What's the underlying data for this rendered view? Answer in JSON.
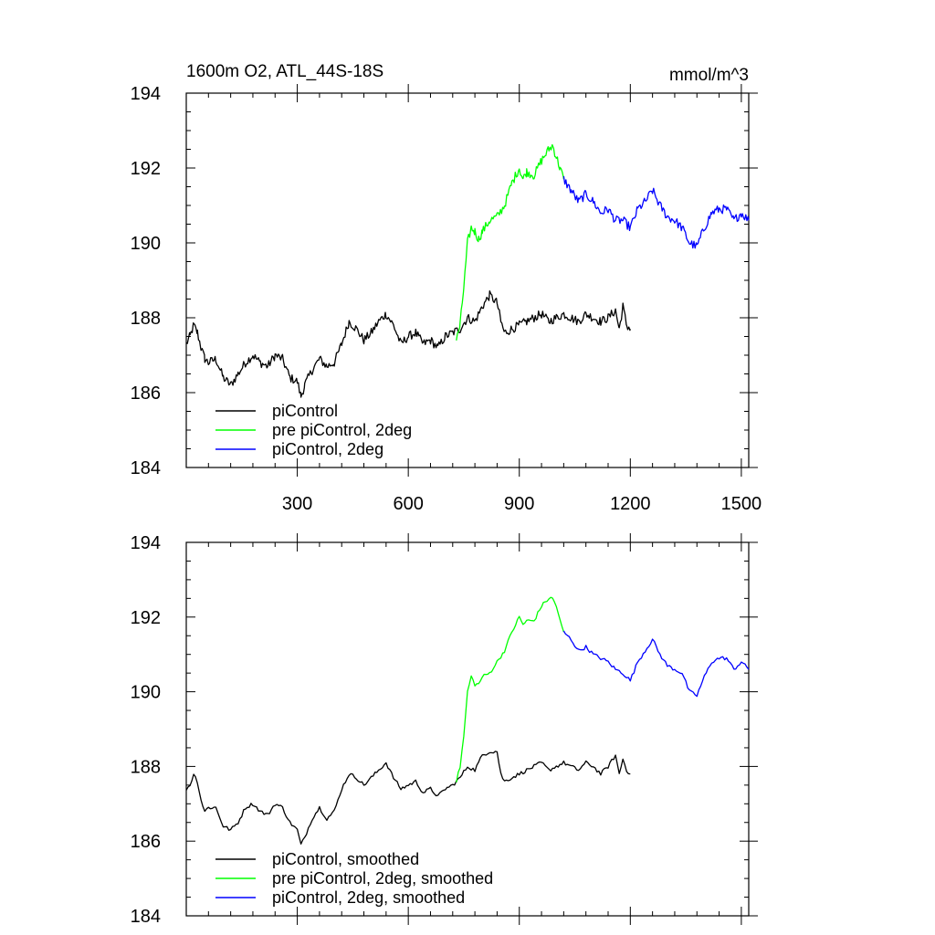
{
  "chart_data": [
    {
      "type": "line",
      "title": "1600m O2, ATL_44S-18S",
      "units_label": "mmol/m^3",
      "xlim": [
        0,
        1520
      ],
      "ylim": [
        184,
        194
      ],
      "x_ticks": [
        300,
        600,
        900,
        1200,
        1500
      ],
      "y_ticks": [
        184,
        186,
        188,
        190,
        192,
        194
      ],
      "x_tick_labels_shown": true,
      "legend_position": "bottom-left",
      "series": [
        {
          "name": "piControl",
          "color": "#000000",
          "x": [
            0,
            10,
            20,
            30,
            40,
            50,
            60,
            80,
            100,
            120,
            140,
            160,
            180,
            200,
            220,
            240,
            260,
            280,
            300,
            310,
            320,
            340,
            360,
            380,
            400,
            420,
            440,
            460,
            480,
            500,
            520,
            540,
            560,
            580,
            600,
            620,
            640,
            660,
            680,
            700,
            720,
            740,
            760,
            780,
            800,
            820,
            840,
            850,
            860,
            880,
            900,
            920,
            940,
            960,
            980,
            1000,
            1020,
            1040,
            1060,
            1080,
            1100,
            1120,
            1140,
            1160,
            1170,
            1180,
            1190,
            1200
          ],
          "y": [
            187.3,
            187.5,
            187.8,
            187.6,
            187.2,
            186.9,
            186.8,
            186.9,
            186.4,
            186.2,
            186.5,
            186.8,
            187.0,
            186.8,
            186.7,
            187.0,
            186.9,
            186.4,
            186.3,
            185.9,
            186.2,
            186.6,
            186.9,
            186.7,
            186.8,
            187.3,
            187.9,
            187.7,
            187.4,
            187.6,
            187.9,
            188.1,
            187.8,
            187.3,
            187.5,
            187.6,
            187.3,
            187.4,
            187.2,
            187.5,
            187.6,
            187.7,
            188.0,
            187.9,
            188.3,
            188.6,
            188.4,
            187.9,
            187.6,
            187.7,
            187.8,
            187.9,
            188.0,
            188.1,
            187.9,
            188.0,
            188.1,
            188.0,
            187.9,
            188.1,
            188.0,
            187.9,
            188.0,
            188.2,
            187.7,
            188.3,
            187.8,
            187.7
          ]
        },
        {
          "name": "pre piControl, 2deg",
          "color": "#00ff00",
          "x": [
            730,
            740,
            750,
            760,
            770,
            780,
            790,
            800,
            820,
            840,
            860,
            880,
            900,
            910,
            920,
            940,
            960,
            980,
            990,
            1000,
            1010,
            1020
          ],
          "y": [
            187.4,
            187.8,
            188.8,
            190.0,
            190.4,
            190.3,
            190.1,
            190.3,
            190.6,
            190.7,
            191.0,
            191.6,
            192.0,
            191.7,
            191.9,
            191.8,
            192.2,
            192.5,
            192.6,
            192.3,
            192.0,
            191.7
          ]
        },
        {
          "name": "piControl, 2deg",
          "color": "#0000ff",
          "x": [
            1020,
            1040,
            1060,
            1080,
            1100,
            1120,
            1140,
            1160,
            1180,
            1200,
            1220,
            1240,
            1260,
            1280,
            1300,
            1320,
            1340,
            1360,
            1380,
            1400,
            1420,
            1440,
            1460,
            1480,
            1500,
            1520
          ],
          "y": [
            191.7,
            191.4,
            191.1,
            191.3,
            191.1,
            190.8,
            190.9,
            190.6,
            190.6,
            190.4,
            190.9,
            191.1,
            191.4,
            191.0,
            190.7,
            190.6,
            190.4,
            190.0,
            189.9,
            190.4,
            190.8,
            190.9,
            190.9,
            190.6,
            190.8,
            190.6
          ]
        }
      ]
    },
    {
      "type": "line",
      "xlim": [
        0,
        1520
      ],
      "ylim": [
        184,
        194
      ],
      "x_ticks": [
        300,
        600,
        900,
        1200,
        1500
      ],
      "y_ticks": [
        184,
        186,
        188,
        190,
        192,
        194
      ],
      "x_tick_labels_shown": false,
      "legend_position": "bottom-left",
      "series": [
        {
          "name": "piControl, smoothed",
          "color": "#000000",
          "x": [
            0,
            10,
            20,
            30,
            40,
            50,
            60,
            80,
            100,
            120,
            140,
            160,
            180,
            200,
            220,
            240,
            260,
            280,
            300,
            310,
            320,
            340,
            360,
            380,
            400,
            420,
            440,
            460,
            480,
            500,
            520,
            540,
            560,
            580,
            600,
            620,
            640,
            660,
            680,
            700,
            720,
            740,
            760,
            780,
            800,
            820,
            840,
            850,
            860,
            880,
            900,
            920,
            940,
            960,
            980,
            1000,
            1020,
            1040,
            1060,
            1080,
            1100,
            1120,
            1140,
            1160,
            1170,
            1180,
            1190,
            1200
          ],
          "y": [
            187.4,
            187.5,
            187.8,
            187.6,
            187.1,
            186.8,
            186.9,
            186.9,
            186.4,
            186.3,
            186.5,
            186.9,
            187.0,
            186.8,
            186.7,
            187.0,
            186.9,
            186.5,
            186.3,
            185.9,
            186.1,
            186.6,
            186.9,
            186.6,
            186.8,
            187.4,
            187.8,
            187.7,
            187.5,
            187.7,
            187.9,
            188.1,
            187.7,
            187.4,
            187.5,
            187.6,
            187.3,
            187.4,
            187.2,
            187.4,
            187.5,
            187.7,
            188.0,
            187.9,
            188.3,
            188.4,
            188.4,
            187.8,
            187.6,
            187.7,
            187.8,
            187.9,
            188.0,
            188.1,
            187.9,
            188.0,
            188.1,
            188.0,
            187.9,
            188.1,
            188.0,
            187.8,
            188.0,
            188.3,
            187.8,
            188.2,
            187.9,
            187.8
          ]
        },
        {
          "name": "pre piControl, 2deg, smoothed",
          "color": "#00ff00",
          "x": [
            730,
            740,
            750,
            760,
            770,
            780,
            790,
            800,
            820,
            840,
            860,
            880,
            900,
            910,
            920,
            940,
            960,
            980,
            990,
            1000,
            1010,
            1020
          ],
          "y": [
            187.6,
            188.0,
            188.8,
            190.0,
            190.4,
            190.2,
            190.2,
            190.4,
            190.5,
            190.8,
            191.1,
            191.6,
            192.0,
            191.8,
            191.9,
            191.9,
            192.3,
            192.5,
            192.5,
            192.3,
            191.9,
            191.6
          ]
        },
        {
          "name": "piControl, 2deg, smoothed",
          "color": "#0000ff",
          "x": [
            1020,
            1040,
            1060,
            1080,
            1100,
            1120,
            1140,
            1160,
            1180,
            1200,
            1220,
            1240,
            1260,
            1280,
            1300,
            1320,
            1340,
            1360,
            1380,
            1400,
            1420,
            1440,
            1460,
            1480,
            1500,
            1520
          ],
          "y": [
            191.6,
            191.4,
            191.1,
            191.2,
            191.0,
            190.9,
            190.8,
            190.6,
            190.5,
            190.3,
            190.8,
            191.1,
            191.4,
            191.0,
            190.7,
            190.6,
            190.5,
            190.0,
            189.9,
            190.4,
            190.8,
            190.9,
            190.9,
            190.6,
            190.8,
            190.6
          ]
        }
      ]
    }
  ]
}
